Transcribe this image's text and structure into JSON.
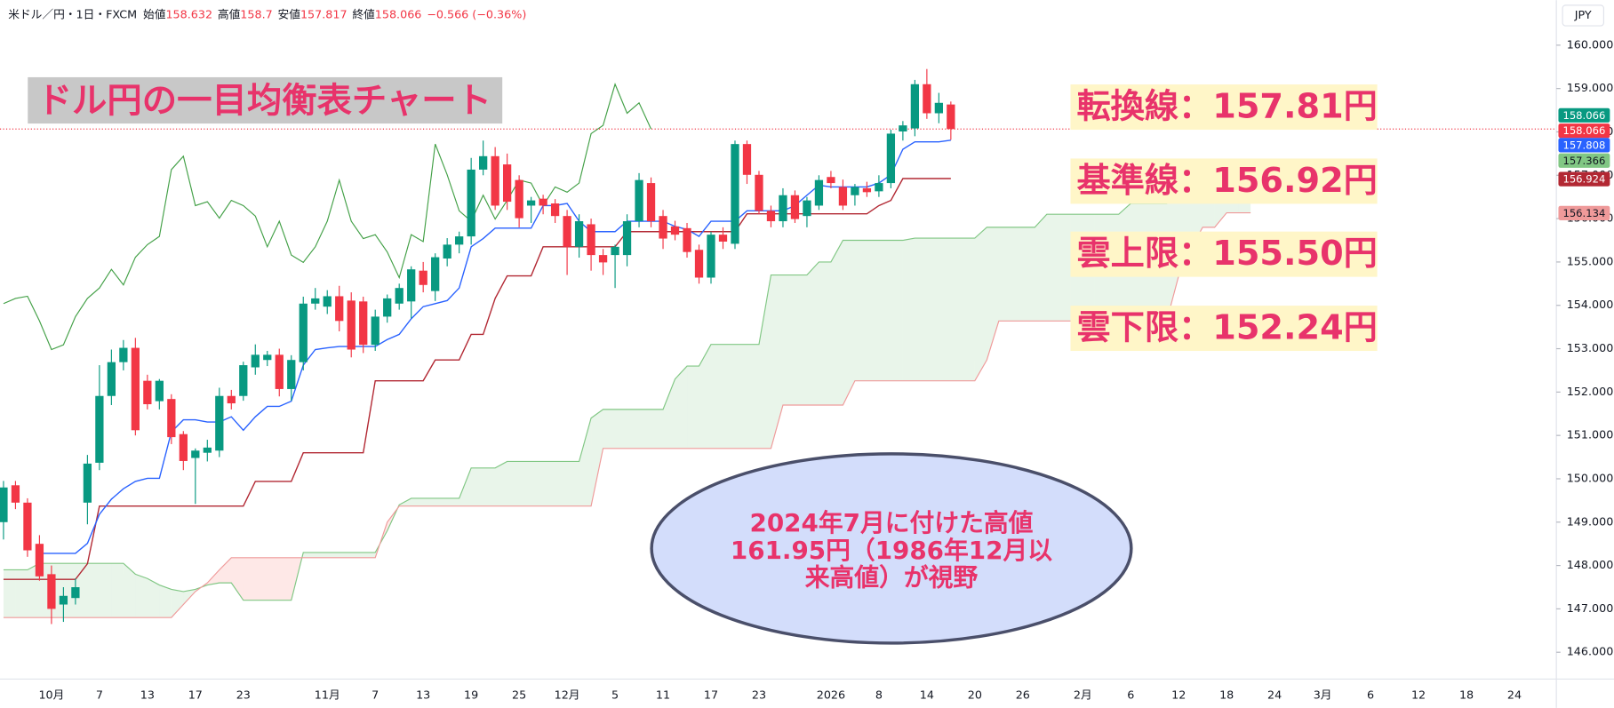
{
  "chart_data": {
    "type": "candlestick",
    "title": "ドル円の一目均衡表チャート",
    "currency": "JPY",
    "header": {
      "symbol": "米ドル／円・1日・FXCM",
      "open_label": "始値",
      "high_label": "高値",
      "low_label": "安値",
      "close_label": "終値",
      "change": "−0.566 (−0.36%)"
    },
    "annotations": [
      "転換線：157.81円",
      "基準線：156.92円",
      "雲上限：155.50円",
      "雲下限：152.24円"
    ],
    "callout": [
      "2024年7月に付けた高値",
      "161.95円（1986年12月以",
      "来高値）が視野"
    ],
    "colors": {
      "up": "#089981",
      "down": "#f23645",
      "tenkan": "#2962ff",
      "kijun": "#b22833",
      "chikou": "#43a047",
      "span_a": "#81c784",
      "span_b": "#ef9a9a",
      "cloud_up": "#4caf50",
      "cloud_down": "#f44336"
    },
    "ylim": [
      145.38,
      161.04
    ],
    "yticks": [
      {
        "value": 160,
        "label": "160.000"
      },
      {
        "value": 159,
        "label": "159.000"
      },
      {
        "value": 158,
        "label": "158.000"
      },
      {
        "value": 157,
        "label": "157.000"
      },
      {
        "value": 156,
        "label": "156.000"
      },
      {
        "value": 155,
        "label": "155.000"
      },
      {
        "value": 154,
        "label": "154.000"
      },
      {
        "value": 153,
        "label": "153.000"
      },
      {
        "value": 152,
        "label": "152.000"
      },
      {
        "value": 151,
        "label": "151.000"
      },
      {
        "value": 150,
        "label": "150.000"
      },
      {
        "value": 149,
        "label": "149.000"
      },
      {
        "value": 148,
        "label": "148.000"
      },
      {
        "value": 147,
        "label": "147.000"
      },
      {
        "value": 146,
        "label": "146.000"
      }
    ],
    "grid": false,
    "categories": [
      null,
      null,
      null,
      null,
      "10月",
      null,
      null,
      null,
      "7",
      null,
      null,
      null,
      "13",
      null,
      null,
      null,
      "17",
      null,
      null,
      null,
      "23",
      null,
      null,
      null,
      null,
      null,
      null,
      "11月",
      null,
      null,
      null,
      "7",
      null,
      null,
      null,
      "13",
      null,
      null,
      null,
      "19",
      null,
      null,
      null,
      "25",
      null,
      null,
      null,
      "12月",
      null,
      null,
      null,
      "5",
      null,
      null,
      null,
      "11",
      null,
      null,
      null,
      "17",
      null,
      null,
      null,
      "23",
      null,
      null,
      null,
      null,
      null,
      "2026",
      null,
      null,
      null,
      "8",
      null,
      null,
      null,
      "14",
      null,
      null,
      null,
      "20",
      null,
      null,
      null,
      "26",
      null,
      null,
      null,
      null,
      "2月",
      null,
      null,
      null,
      "6",
      null,
      null,
      null,
      "12",
      null,
      null,
      null,
      "18",
      null,
      null,
      null,
      "24",
      null,
      null,
      null,
      "3月",
      null,
      null,
      null,
      "6",
      null,
      null,
      null,
      "12",
      null,
      null,
      null,
      "18",
      null,
      null,
      null,
      "24"
    ],
    "open": [
      149.0,
      149.85,
      149.45,
      148.5,
      147.8,
      147.1,
      147.25,
      149.45,
      150.37,
      151.91,
      152.69,
      153.02,
      152.26,
      151.79,
      151.84,
      151.03,
      150.48,
      150.6,
      150.65,
      151.91,
      151.91,
      152.57,
      152.74,
      152.86,
      152.07,
      152.69,
      154.04,
      153.97,
      154.21,
      154.11,
      154.09,
      153.09,
      153.74,
      154.04,
      154.09,
      154.8,
      154.33,
      155.08,
      155.4,
      155.59,
      157.13,
      157.44,
      157.25,
      156.89,
      156.3,
      156.46,
      156.35,
      156.06,
      155.35,
      155.87,
      155.16,
      155.16,
      155.16,
      155.94,
      156.82,
      156.06,
      155.82,
      155.78,
      155.28,
      154.64,
      155.63,
      155.42,
      157.72,
      157.01,
      156.18,
      155.94,
      156.54,
      156.06,
      156.3,
      156.96,
      156.73,
      156.54,
      156.7,
      156.63,
      156.82,
      158.01,
      158.08,
      159.1,
      158.43,
      158.632,
      null,
      null,
      null,
      null,
      null,
      null,
      null,
      null,
      null,
      null,
      null,
      null,
      null,
      null,
      null,
      null,
      null,
      null,
      null,
      null,
      null,
      null,
      null,
      null,
      null,
      null,
      null,
      null,
      null,
      null,
      null,
      null,
      null,
      null,
      null,
      null,
      null,
      null,
      null,
      null,
      null,
      null,
      null,
      null,
      null,
      null,
      null
    ],
    "high": [
      149.95,
      149.95,
      149.55,
      148.7,
      148.0,
      147.5,
      147.7,
      150.55,
      152.62,
      152.98,
      153.2,
      153.25,
      152.4,
      152.3,
      151.95,
      151.1,
      150.7,
      150.9,
      152.1,
      152.05,
      152.7,
      153.1,
      152.95,
      153.0,
      152.85,
      154.2,
      154.4,
      154.35,
      154.45,
      154.3,
      154.2,
      153.9,
      154.25,
      154.5,
      154.9,
      155.0,
      155.2,
      155.55,
      155.7,
      157.4,
      157.8,
      157.65,
      157.5,
      157.0,
      156.5,
      156.55,
      156.45,
      156.2,
      156.1,
      156.0,
      155.3,
      155.4,
      156.1,
      157.05,
      156.95,
      156.2,
      155.95,
      155.9,
      155.4,
      155.7,
      155.8,
      157.8,
      157.8,
      157.1,
      156.3,
      156.7,
      156.65,
      156.5,
      157.0,
      157.1,
      156.9,
      156.8,
      156.85,
      157.0,
      158.05,
      158.25,
      159.2,
      159.45,
      158.9,
      158.7,
      null,
      null,
      null,
      null,
      null,
      null,
      null,
      null,
      null,
      null,
      null,
      null,
      null,
      null,
      null,
      null,
      null,
      null,
      null,
      null,
      null,
      null,
      null,
      null,
      null,
      null,
      null,
      null,
      null,
      null,
      null,
      null,
      null,
      null,
      null,
      null,
      null,
      null,
      null,
      null,
      null,
      null,
      null,
      null,
      null,
      null,
      null
    ],
    "low": [
      148.6,
      149.3,
      148.2,
      147.65,
      146.65,
      146.7,
      147.1,
      148.95,
      150.2,
      151.7,
      152.5,
      151.0,
      151.6,
      151.6,
      150.8,
      150.2,
      149.42,
      150.4,
      150.5,
      151.6,
      151.8,
      152.4,
      152.6,
      151.9,
      151.8,
      152.5,
      153.9,
      153.8,
      153.4,
      152.8,
      152.9,
      152.95,
      153.6,
      153.9,
      153.7,
      154.3,
      154.1,
      154.9,
      155.2,
      155.4,
      157.0,
      156.2,
      156.2,
      155.8,
      155.9,
      156.1,
      155.9,
      154.7,
      155.1,
      154.8,
      154.7,
      154.4,
      154.9,
      155.8,
      155.8,
      155.3,
      155.5,
      155.1,
      154.5,
      154.5,
      155.3,
      155.3,
      156.8,
      156.1,
      155.8,
      155.8,
      155.9,
      155.8,
      156.2,
      156.7,
      156.2,
      156.3,
      156.5,
      156.5,
      156.7,
      157.8,
      157.9,
      158.3,
      158.2,
      157.817,
      null,
      null,
      null,
      null,
      null,
      null,
      null,
      null,
      null,
      null,
      null,
      null,
      null,
      null,
      null,
      null,
      null,
      null,
      null,
      null,
      null,
      null,
      null,
      null,
      null,
      null,
      null,
      null,
      null,
      null,
      null,
      null,
      null,
      null,
      null,
      null,
      null,
      null,
      null,
      null,
      null,
      null,
      null,
      null,
      null,
      null,
      null
    ],
    "close": [
      149.8,
      149.45,
      148.35,
      147.75,
      147.0,
      147.3,
      147.5,
      150.35,
      151.91,
      152.69,
      153.02,
      151.12,
      151.72,
      152.26,
      150.96,
      150.41,
      150.65,
      150.72,
      151.91,
      151.74,
      152.62,
      152.86,
      152.86,
      152.07,
      152.74,
      154.04,
      154.16,
      154.21,
      153.64,
      152.98,
      153.09,
      153.74,
      154.16,
      154.4,
      154.83,
      154.47,
      155.11,
      155.4,
      155.59,
      157.13,
      157.44,
      156.3,
      156.39,
      156.01,
      156.42,
      156.3,
      156.06,
      155.35,
      155.94,
      155.16,
      154.99,
      155.35,
      155.94,
      156.89,
      155.94,
      155.54,
      155.63,
      155.23,
      154.64,
      155.63,
      155.47,
      157.72,
      157.01,
      156.18,
      155.94,
      156.54,
      155.99,
      156.42,
      156.89,
      156.82,
      156.3,
      156.73,
      156.61,
      156.82,
      157.96,
      158.15,
      159.1,
      158.43,
      158.67,
      158.066,
      null,
      null,
      null,
      null,
      null,
      null,
      null,
      null,
      null,
      null,
      null,
      null,
      null,
      null,
      null,
      null,
      null,
      null,
      null,
      null,
      null,
      null,
      null,
      null,
      null,
      null,
      null,
      null,
      null,
      null,
      null,
      null,
      null,
      null,
      null,
      null,
      null,
      null,
      null,
      null,
      null,
      null,
      null,
      null,
      null,
      null,
      null
    ],
    "tenkan": [
      null,
      null,
      null,
      148.28,
      148.28,
      148.28,
      148.28,
      148.51,
      149.18,
      149.53,
      149.77,
      149.94,
      150.01,
      150.01,
      151.08,
      151.36,
      151.36,
      151.31,
      151.31,
      151.43,
      151.12,
      151.43,
      151.67,
      151.67,
      151.79,
      152.62,
      152.98,
      153.02,
      153.05,
      153.05,
      153.05,
      153.05,
      153.21,
      153.33,
      153.69,
      153.97,
      154.04,
      154.11,
      154.4,
      155.35,
      155.54,
      155.78,
      155.78,
      155.78,
      155.78,
      156.3,
      156.3,
      156.35,
      155.94,
      155.7,
      155.7,
      155.7,
      155.94,
      155.94,
      155.94,
      155.94,
      155.82,
      155.75,
      155.59,
      155.94,
      155.94,
      155.94,
      156.18,
      156.18,
      156.18,
      156.18,
      156.3,
      156.54,
      156.77,
      156.73,
      156.73,
      156.73,
      156.73,
      156.82,
      157.01,
      157.6,
      157.77,
      157.77,
      157.77,
      157.808,
      null,
      null,
      null,
      null,
      null,
      null,
      null,
      null,
      null,
      null,
      null,
      null,
      null,
      null,
      null,
      null,
      null,
      null,
      null,
      null,
      null,
      null,
      null,
      null,
      null,
      null,
      null,
      null,
      null,
      null,
      null,
      null,
      null,
      null,
      null,
      null,
      null,
      null,
      null,
      null,
      null,
      null,
      null,
      null,
      null,
      null,
      null
    ],
    "kijun": [
      147.68,
      147.68,
      147.68,
      147.68,
      147.68,
      147.68,
      147.68,
      148.04,
      149.37,
      149.37,
      149.37,
      149.37,
      149.37,
      149.37,
      149.37,
      149.37,
      149.37,
      149.37,
      149.37,
      149.37,
      149.37,
      149.94,
      149.94,
      149.94,
      149.94,
      150.6,
      150.6,
      150.6,
      150.6,
      150.6,
      150.6,
      152.26,
      152.26,
      152.26,
      152.26,
      152.26,
      152.74,
      152.74,
      152.74,
      153.33,
      153.33,
      154.16,
      154.68,
      154.68,
      154.68,
      155.35,
      155.35,
      155.35,
      155.35,
      155.35,
      155.35,
      155.35,
      155.7,
      155.7,
      155.7,
      155.7,
      155.7,
      155.7,
      155.7,
      155.7,
      155.7,
      155.7,
      156.11,
      156.11,
      156.11,
      156.11,
      156.11,
      156.11,
      156.11,
      156.11,
      156.11,
      156.11,
      156.11,
      156.3,
      156.42,
      156.924,
      156.924,
      156.924,
      156.924,
      156.924,
      null,
      null,
      null,
      null,
      null,
      null,
      null,
      null,
      null,
      null,
      null,
      null,
      null,
      null,
      null,
      null,
      null,
      null,
      null,
      null,
      null,
      null,
      null,
      null,
      null,
      null,
      null,
      null,
      null,
      null,
      null,
      null,
      null,
      null,
      null,
      null,
      null,
      null,
      null,
      null,
      null,
      null,
      null,
      null,
      null,
      null,
      null
    ],
    "chikou": [
      154.04,
      154.16,
      154.21,
      153.64,
      152.98,
      153.09,
      153.74,
      154.16,
      154.4,
      154.83,
      154.47,
      155.11,
      155.4,
      155.59,
      157.13,
      157.44,
      156.3,
      156.39,
      156.01,
      156.42,
      156.3,
      156.06,
      155.35,
      155.94,
      155.16,
      154.99,
      155.35,
      155.94,
      156.89,
      155.94,
      155.54,
      155.63,
      155.23,
      154.64,
      155.63,
      155.47,
      157.72,
      157.01,
      156.18,
      155.94,
      156.54,
      155.99,
      156.42,
      156.89,
      156.82,
      156.3,
      156.73,
      156.61,
      156.82,
      157.96,
      158.15,
      159.1,
      158.43,
      158.67,
      158.066,
      null,
      null,
      null,
      null,
      null,
      null,
      null,
      null,
      null,
      null,
      null,
      null,
      null,
      null,
      null,
      null,
      null,
      null,
      null,
      null,
      null,
      null,
      null,
      null,
      null,
      null,
      null,
      null,
      null,
      null,
      null,
      null,
      null,
      null,
      null,
      null,
      null,
      null,
      null,
      null,
      null,
      null,
      null,
      null,
      null,
      null,
      null,
      null,
      null,
      null,
      null,
      null,
      null,
      null,
      null,
      null,
      null,
      null,
      null,
      null,
      null,
      null,
      null,
      null,
      null,
      null,
      null,
      null,
      null,
      null,
      null,
      null
    ],
    "span_a": [
      147.9,
      147.9,
      147.9,
      148.05,
      148.05,
      148.05,
      148.05,
      148.05,
      148.05,
      148.05,
      148.05,
      147.8,
      147.7,
      147.55,
      147.45,
      147.4,
      147.45,
      147.55,
      147.6,
      147.6,
      147.2,
      147.2,
      147.2,
      147.2,
      147.2,
      148.3,
      148.3,
      148.3,
      148.3,
      148.3,
      148.3,
      148.3,
      148.8,
      149.4,
      149.55,
      149.55,
      149.55,
      149.55,
      149.55,
      150.25,
      150.25,
      150.25,
      150.4,
      150.4,
      150.4,
      150.4,
      150.4,
      150.4,
      150.4,
      151.4,
      151.6,
      151.6,
      151.6,
      151.6,
      151.6,
      151.6,
      152.3,
      152.6,
      152.6,
      153.1,
      153.1,
      153.1,
      153.1,
      153.1,
      154.7,
      154.7,
      154.7,
      154.7,
      155.0,
      155.0,
      155.5,
      155.5,
      155.5,
      155.5,
      155.5,
      155.5,
      155.55,
      155.55,
      155.55,
      155.55,
      155.55,
      155.55,
      155.8,
      155.8,
      155.8,
      155.8,
      155.8,
      156.1,
      156.1,
      156.1,
      156.1,
      156.1,
      156.1,
      156.1,
      156.35,
      156.35,
      156.35,
      156.35,
      156.5,
      156.8,
      157.1,
      157.3,
      157.3,
      157.3,
      157.366,
      null,
      null,
      null,
      null,
      null,
      null,
      null,
      null,
      null,
      null,
      null,
      null,
      null,
      null,
      null,
      null,
      null,
      null,
      null,
      null,
      null,
      null
    ],
    "span_b": [
      146.8,
      146.8,
      146.8,
      146.8,
      146.8,
      146.8,
      146.8,
      146.8,
      146.8,
      146.8,
      146.8,
      146.8,
      146.8,
      146.8,
      146.8,
      147.1,
      147.4,
      147.6,
      147.9,
      148.18,
      148.18,
      148.18,
      148.18,
      148.18,
      148.18,
      148.18,
      148.18,
      148.18,
      148.18,
      148.18,
      148.18,
      148.18,
      149.0,
      149.37,
      149.37,
      149.37,
      149.37,
      149.37,
      149.37,
      149.37,
      149.37,
      149.37,
      149.37,
      149.37,
      149.37,
      149.37,
      149.37,
      149.37,
      149.37,
      149.37,
      150.7,
      150.7,
      150.7,
      150.7,
      150.7,
      150.7,
      150.7,
      150.7,
      150.7,
      150.7,
      150.7,
      150.7,
      150.7,
      150.7,
      150.7,
      151.7,
      151.7,
      151.7,
      151.7,
      151.7,
      151.7,
      152.26,
      152.26,
      152.26,
      152.26,
      152.26,
      152.26,
      152.26,
      152.26,
      152.26,
      152.26,
      152.26,
      152.74,
      153.64,
      153.64,
      153.64,
      153.64,
      153.64,
      153.64,
      153.64,
      153.64,
      153.64,
      153.64,
      153.64,
      153.64,
      153.64,
      153.64,
      153.64,
      154.68,
      155.3,
      155.8,
      155.8,
      156.134,
      156.134,
      156.134,
      null,
      null,
      null,
      null,
      null,
      null,
      null,
      null,
      null,
      null,
      null,
      null,
      null,
      null,
      null,
      null,
      null,
      null,
      null,
      null,
      null,
      null
    ]
  }
}
